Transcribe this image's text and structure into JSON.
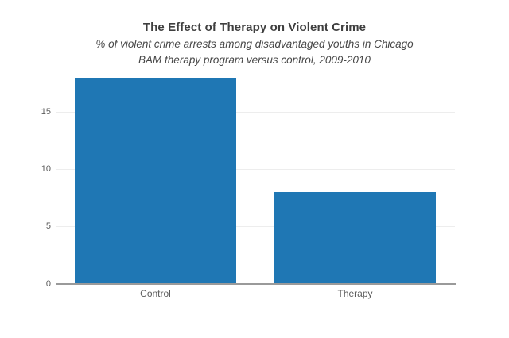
{
  "chart_data": {
    "type": "bar",
    "title": "The Effect of Therapy on Violent Crime",
    "subtitle_line1": "% of violent crime arrests among disadvantaged youths in Chicago",
    "subtitle_line2": "BAM therapy program versus control, 2009-2010",
    "categories": [
      "Control",
      "Therapy"
    ],
    "values": [
      18,
      8
    ],
    "xlabel": "",
    "ylabel": "",
    "yticks": [
      0,
      5,
      10,
      15
    ],
    "ylim": [
      0,
      18.7
    ],
    "grid": true,
    "legend": "none",
    "colors": {
      "bar": "#1f77b4",
      "axis_line": "#9a9a9a",
      "gridline": "#ededed",
      "title_text": "#3f3f3f",
      "tick_text": "#5c5c5c"
    }
  }
}
